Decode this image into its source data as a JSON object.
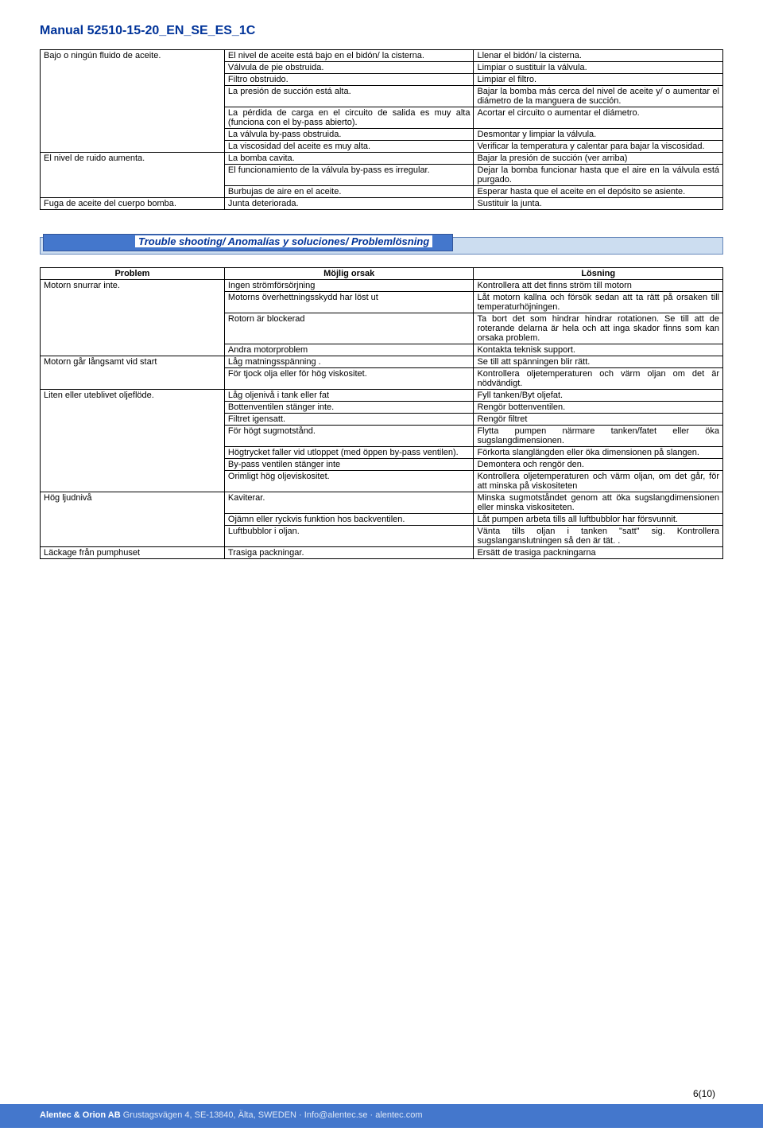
{
  "doc_title": "Manual 52510-15-20_EN_SE_ES_1C",
  "table1": {
    "rows": [
      {
        "c0": "Bajo o ningún fluido de aceite.",
        "c1": "El nivel de aceite está bajo en el bidón/ la cisterna.",
        "c2": "Llenar el bidón/ la cisterna.",
        "rs0": 7
      },
      {
        "c1": "Válvula de pie obstruida.",
        "c2": "Limpiar o sustituir la válvula."
      },
      {
        "c1": "Filtro obstruido.",
        "c2": "Limpiar el filtro."
      },
      {
        "c1": "La presión de succión está alta.",
        "c2": "Bajar la bomba más cerca del nivel de aceite y/ o aumentar el diámetro de la manguera de succión."
      },
      {
        "c1": "La pérdida de carga en el circuito de salida es muy alta (funciona con el by-pass abierto).",
        "c2": "Acortar el circuito o aumentar el diámetro."
      },
      {
        "c1": "La válvula by-pass obstruida.",
        "c2": "Desmontar y limpiar la válvula."
      },
      {
        "c1": "La viscosidad del aceite es muy alta.",
        "c2": "Verificar la temperatura y calentar para bajar la viscosidad."
      },
      {
        "c0": "El nivel de ruido aumenta.",
        "c1": "La bomba cavita.",
        "c2": "Bajar la presión de succión (ver arriba)",
        "rs0": 3
      },
      {
        "c1": "El funcionamiento de la válvula by-pass es irregular.",
        "c2": "Dejar la bomba funcionar hasta que el aire en la válvula está purgado."
      },
      {
        "c1": "Burbujas de aire en el aceite.",
        "c2": "Esperar hasta que el aceite en el depósito se asiente."
      },
      {
        "c0": "Fuga de aceite del cuerpo bomba.",
        "c1": "Junta deteriorada.",
        "c2": "Sustituir la junta."
      }
    ]
  },
  "section_title": "Trouble shooting/ Anomalías y soluciones/ Problemlösning",
  "table2": {
    "headers": [
      "Problem",
      "Möjlig orsak",
      "Lösning"
    ],
    "rows": [
      {
        "c0": "Motorn snurrar inte.",
        "c1": "Ingen strömförsörjning",
        "c2": "Kontrollera att det finns ström till motorn",
        "rs0": 4
      },
      {
        "c1": "Motorns överhettningsskydd har löst ut",
        "c2": "Låt motorn kallna och försök sedan att ta rätt på orsaken till temperaturhöjningen."
      },
      {
        "c1": "Rotorn är blockerad",
        "c2": "Ta bort det som hindrar hindrar rotationen. Se till att de roterande delarna är hela och att inga skador finns som kan orsaka problem."
      },
      {
        "c1": "Andra motorproblem",
        "c2": "Kontakta teknisk support."
      },
      {
        "c0": "Motorn går långsamt vid start",
        "c1": "Låg matningsspänning .",
        "c2": "Se till att spänningen blir rätt.",
        "rs0": 2
      },
      {
        "c1": "För tjock olja eller för hög viskositet.",
        "c2": "Kontrollera oljetemperaturen och värm oljan om det är nödvändigt."
      },
      {
        "c0": "Liten eller uteblivet oljeflöde.",
        "c1": "Låg oljenivå i tank eller fat",
        "c2": "Fyll tanken/Byt oljefat.",
        "rs0": 7
      },
      {
        "c1": "Bottenventilen stänger inte.",
        "c2": "Rengör bottenventilen."
      },
      {
        "c1": "Filtret igensatt.",
        "c2": "Rengör filtret"
      },
      {
        "c1": "För högt sugmotstånd.",
        "c2": "Flytta pumpen närmare tanken/fatet eller öka sugslangdimensionen."
      },
      {
        "c1": "Högtrycket faller vid utloppet (med öppen by-pass ventilen).",
        "c2": "Förkorta slanglängden eller öka dimensionen på slangen."
      },
      {
        "c1": "By-pass ventilen stänger inte",
        "c2": "Demontera och rengör den."
      },
      {
        "c1": "Orimligt hög oljeviskositet.",
        "c2": "Kontrollera oljetemperaturen och värm oljan, om det går, för att minska på viskositeten"
      },
      {
        "c0": "Hög ljudnivå",
        "c1": "Kaviterar.",
        "c2": "Minska sugmotståndet genom att öka sugslangdimensionen eller minska viskositeten.",
        "rs0": 3
      },
      {
        "c1": "Ojämn eller ryckvis funktion hos backventilen.",
        "c2": "Låt pumpen arbeta tills all luftbubblor har försvunnit."
      },
      {
        "c1": "Luftbubblor i oljan.",
        "c2": "Vänta tills oljan i tanken \"satt\" sig. Kontrollera sugslanganslutningen så den är tät. ."
      },
      {
        "c0": "Läckage från pumphuset",
        "c1": "Trasiga packningar.",
        "c2": "Ersätt de trasiga packningarna"
      }
    ]
  },
  "page_num": "6(10)",
  "footer": {
    "company": "Alentec & Orion AB",
    "rest": " Grustagsvägen 4, SE-13840, Älta, SWEDEN · Info@alentec.se · alentec.com"
  },
  "col_widths": {
    "c0": "27%",
    "c1": "36.5%",
    "c2": "36.5%"
  }
}
